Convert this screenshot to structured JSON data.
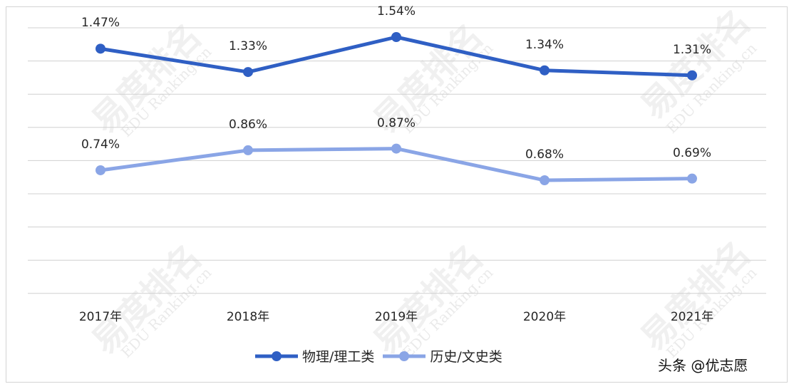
{
  "chart_data": {
    "type": "line",
    "title": "",
    "xlabel": "",
    "ylabel": "",
    "categories": [
      "2017年",
      "2018年",
      "2019年",
      "2020年",
      "2021年"
    ],
    "series": [
      {
        "name": "物理/理工类",
        "color": "#2f5fc4",
        "values": [
          1.47,
          1.33,
          1.54,
          1.34,
          1.31
        ],
        "labels": [
          "1.47%",
          "1.33%",
          "1.54%",
          "1.34%",
          "1.31%"
        ]
      },
      {
        "name": "历史/文史类",
        "color": "#8aa5e6",
        "values": [
          0.74,
          0.86,
          0.87,
          0.68,
          0.69
        ],
        "labels": [
          "0.74%",
          "0.86%",
          "0.87%",
          "0.68%",
          "0.69%"
        ]
      }
    ],
    "grid": true,
    "legend_position": "bottom",
    "data_labels": true
  },
  "legend": {
    "series_1": "物理/理工类",
    "series_2": "历史/文史类"
  },
  "watermark": {
    "brand_cn": "易度排名",
    "brand_en": "EDU Ranking.cn",
    "credit": "头条 @优志愿"
  }
}
